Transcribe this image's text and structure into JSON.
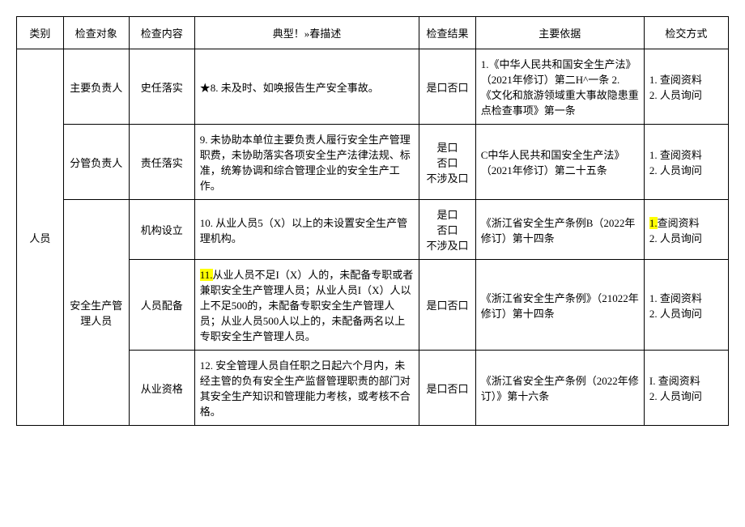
{
  "headers": {
    "category": "类别",
    "object": "检查对象",
    "content": "检查内容",
    "problem": "典型！»春描述",
    "result": "检查结果",
    "basis": "主要依据",
    "method": "检交方式"
  },
  "category": "人员",
  "rows": [
    {
      "object": "主要负责人",
      "content": "史任落实",
      "problem": "★8. 未及时、如唤报告生产安全事故。",
      "result": "是口否口",
      "basis": "1.《中华人民共和国安全生产法》（2021年修订）第二H^一条 2.《文化和旅游领域重大事故隐患重点检查事项》第一条",
      "method1": "1. 查阅资料",
      "method2": "2. 人员询问"
    },
    {
      "object": "分管负责人",
      "content": "责任落实",
      "problem": "9. 未协助本单位主要负责人履行安全生产管理职费，未协助落实各项安全生产法律法规、标准，统筹协调和综合管理企业的安全生产工作。",
      "result1": "是口",
      "result2": "否口",
      "result3": "不涉及口",
      "basis": "C中华人民共和国安全生产法》（2021年修订）第二十五条",
      "method1": "1. 查阅资料",
      "method2": "2. 人员询问"
    },
    {
      "object": "安全生产管理人员",
      "content": "机构设立",
      "problem": "10. 从业人员5（X）以上的未设置安全生产管理机构。",
      "result1": "是口",
      "result2": "否口",
      "result3": "不涉及口",
      "basis": "《浙江省安全生产条例B（2022年修订）第十四条",
      "method1_prefix": "1.",
      "method1_text": "查阅资料",
      "method2": "2. 人员询问"
    },
    {
      "content": "人员配备",
      "problem_prefix": "11.",
      "problem_text": "从业人员不足I（X）人的，未配备专职或者兼职安全生产管理人员；从业人员I（X）人以上不足500的，未配备专职安全生产管理人员；从业人员500人以上的，未配备两名以上专职安全生产管理人员。",
      "result": "是口否口",
      "basis": "《浙江省安全生产条例》（21022年修订）第十四条",
      "method1": "1. 查阅资料",
      "method2": "2. 人员询问"
    },
    {
      "content": "从业资格",
      "problem": "12. 安全管理人员自任职之日起六个月内，未经主管的负有安全生产监督管理职责的部门对其安全生产知识和管理能力考核，或考核不合格。",
      "result": "是口否口",
      "basis": "《浙江省安全生产条例（2022年修订）》第十六条",
      "method1": "I. 查阅资料",
      "method2": "2. 人员询问"
    }
  ]
}
